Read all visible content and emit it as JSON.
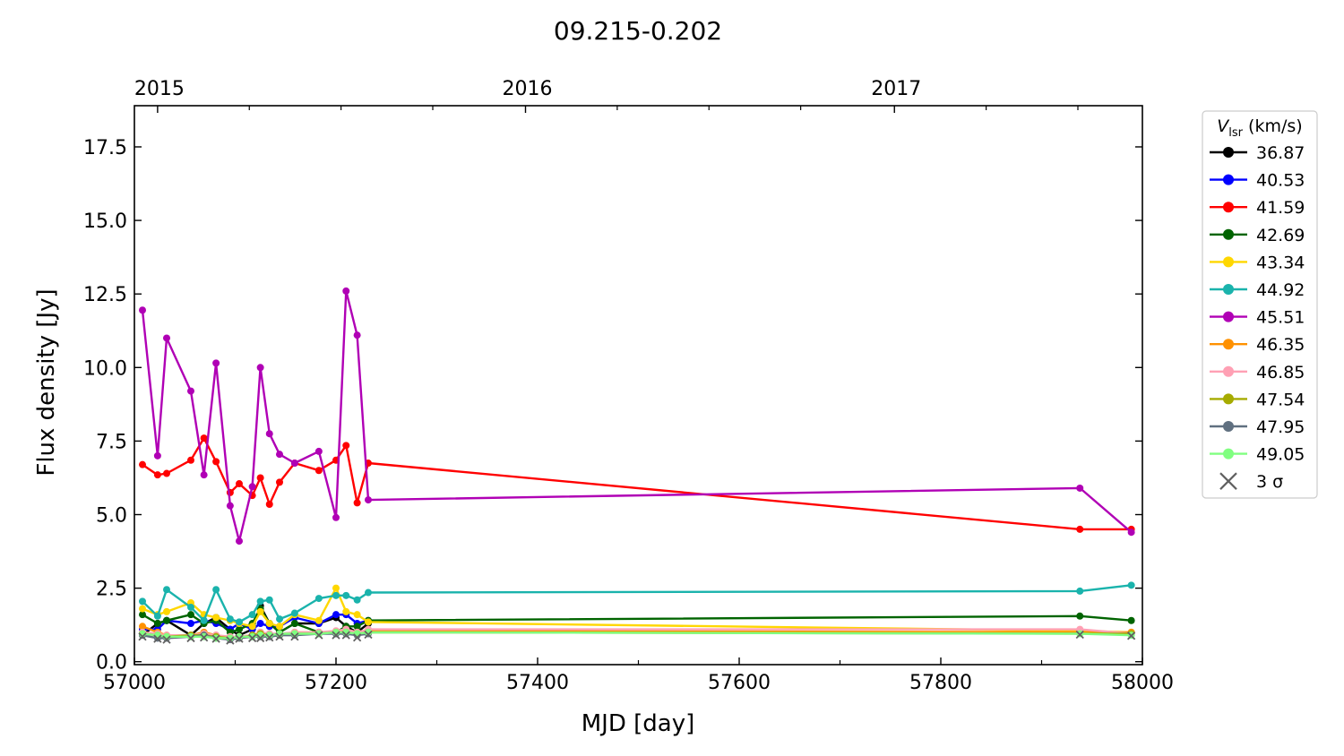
{
  "chart_data": {
    "type": "line",
    "title": "09.215-0.202",
    "xlabel": "MJD [day]",
    "ylabel": "Flux density [Jy]",
    "xlim": [
      57000,
      58000
    ],
    "ylim": [
      -0.1,
      18.9
    ],
    "x_ticks": [
      57000,
      57200,
      57400,
      57600,
      57800,
      58000
    ],
    "y_ticks": [
      "0.0",
      "2.5",
      "5.0",
      "7.5",
      "10.0",
      "12.5",
      "15.0",
      "17.5"
    ],
    "top_axis_ticks": [
      {
        "label": "2015",
        "mjd": 57023
      },
      {
        "label": "2016",
        "mjd": 57388
      },
      {
        "label": "2017",
        "mjd": 57754
      }
    ],
    "legend": {
      "title_main": "V",
      "title_sub": "lsr",
      "title_unit": " (km/s)",
      "placement": "outside-right",
      "sigma_label": "3 σ",
      "sigma_color": "#606060"
    },
    "series": [
      {
        "name": "36.87",
        "color": "#000000",
        "x": [
          57008,
          57023,
          57032,
          57056,
          57069,
          57081,
          57095,
          57104,
          57117,
          57125,
          57134,
          57144,
          57159,
          57183,
          57200,
          57210,
          57221,
          57232
        ],
        "y": [
          0.9,
          1.3,
          1.4,
          0.9,
          1.3,
          1.5,
          1.1,
          0.9,
          1.1,
          1.9,
          1.3,
          1.0,
          1.3,
          1.3,
          1.5,
          1.2,
          1.0,
          1.3
        ]
      },
      {
        "name": "40.53",
        "color": "#0000ff",
        "x": [
          57008,
          57023,
          57032,
          57056,
          57069,
          57081,
          57095,
          57104,
          57117,
          57125,
          57134,
          57144,
          57159,
          57183,
          57200,
          57210,
          57221,
          57232
        ],
        "y": [
          1.1,
          1.1,
          1.4,
          1.3,
          1.4,
          1.3,
          1.1,
          1.3,
          1.1,
          1.3,
          1.2,
          1.2,
          1.5,
          1.3,
          1.6,
          1.6,
          1.3,
          1.4
        ]
      },
      {
        "name": "41.59",
        "color": "#ff0000",
        "x": [
          57008,
          57023,
          57032,
          57056,
          57069,
          57081,
          57095,
          57104,
          57117,
          57125,
          57134,
          57144,
          57159,
          57183,
          57200,
          57210,
          57221,
          57232,
          57938,
          57989
        ],
        "y": [
          6.7,
          6.35,
          6.4,
          6.85,
          7.6,
          6.8,
          5.75,
          6.05,
          5.65,
          6.25,
          5.35,
          6.1,
          6.75,
          6.5,
          6.85,
          7.35,
          5.4,
          6.75,
          4.5,
          4.5
        ]
      },
      {
        "name": "42.69",
        "color": "#006400",
        "x": [
          57008,
          57023,
          57032,
          57056,
          57069,
          57081,
          57095,
          57104,
          57117,
          57125,
          57134,
          57144,
          57159,
          57183,
          57200,
          57210,
          57221,
          57232,
          57938,
          57989
        ],
        "y": [
          1.6,
          1.3,
          1.4,
          1.6,
          1.3,
          1.4,
          1.0,
          1.1,
          1.3,
          1.8,
          1.3,
          1.0,
          1.3,
          1.0,
          1.0,
          1.2,
          1.2,
          1.4,
          1.55,
          1.4
        ]
      },
      {
        "name": "43.34",
        "color": "#ffd700",
        "x": [
          57008,
          57023,
          57032,
          57056,
          57069,
          57081,
          57095,
          57104,
          57117,
          57125,
          57134,
          57144,
          57159,
          57183,
          57200,
          57210,
          57221,
          57232,
          57938,
          57989
        ],
        "y": [
          1.8,
          1.6,
          1.7,
          2.0,
          1.6,
          1.5,
          1.4,
          1.3,
          1.2,
          1.7,
          1.3,
          1.2,
          1.6,
          1.4,
          2.5,
          1.7,
          1.6,
          1.35,
          1.05,
          1.0
        ]
      },
      {
        "name": "44.92",
        "color": "#1ab3ac",
        "x": [
          57008,
          57023,
          57032,
          57056,
          57069,
          57081,
          57095,
          57104,
          57117,
          57125,
          57134,
          57144,
          57159,
          57183,
          57200,
          57210,
          57221,
          57232,
          57938,
          57989
        ],
        "y": [
          2.05,
          1.55,
          2.45,
          1.85,
          1.4,
          2.45,
          1.45,
          1.35,
          1.6,
          2.05,
          2.1,
          1.45,
          1.65,
          2.15,
          2.25,
          2.25,
          2.1,
          2.35,
          2.4,
          2.6
        ]
      },
      {
        "name": "45.51",
        "color": "#b000b5",
        "x": [
          57008,
          57023,
          57032,
          57056,
          57069,
          57081,
          57095,
          57104,
          57117,
          57125,
          57134,
          57144,
          57159,
          57183,
          57200,
          57210,
          57221,
          57232,
          57938,
          57989
        ],
        "y": [
          11.95,
          7.0,
          11.0,
          9.2,
          6.35,
          10.15,
          5.3,
          4.1,
          5.95,
          10.0,
          7.75,
          7.05,
          6.75,
          7.15,
          4.9,
          12.6,
          11.1,
          5.5,
          5.9,
          4.4
        ]
      },
      {
        "name": "46.35",
        "color": "#ff9100",
        "x": [
          57008,
          57023,
          57032,
          57056,
          57069,
          57081,
          57095,
          57104,
          57117,
          57125,
          57134,
          57144,
          57159,
          57183,
          57200,
          57210,
          57221,
          57232,
          57989
        ],
        "y": [
          1.2,
          1.0,
          0.9,
          0.9,
          1.0,
          0.9,
          0.8,
          0.85,
          0.9,
          1.0,
          0.9,
          0.9,
          1.0,
          1.0,
          1.0,
          1.1,
          1.0,
          1.05,
          1.0
        ]
      },
      {
        "name": "46.85",
        "color": "#ffa0b4",
        "x": [
          57008,
          57023,
          57032,
          57056,
          57069,
          57081,
          57095,
          57104,
          57117,
          57125,
          57134,
          57144,
          57159,
          57183,
          57200,
          57210,
          57221,
          57232,
          57938,
          57989
        ],
        "y": [
          1.0,
          0.95,
          0.9,
          0.9,
          0.95,
          0.9,
          0.85,
          0.85,
          0.9,
          1.0,
          0.95,
          0.95,
          1.0,
          1.0,
          1.05,
          1.1,
          1.0,
          1.1,
          1.1,
          0.95
        ]
      },
      {
        "name": "47.54",
        "color": "#a6ab00",
        "x": [
          57008,
          57023,
          57032,
          57056,
          57069,
          57081,
          57095,
          57104,
          57117,
          57125,
          57134,
          57144,
          57159,
          57183,
          57200,
          57210,
          57221,
          57232,
          57989
        ],
        "y": [
          0.95,
          0.9,
          0.85,
          0.9,
          0.9,
          0.85,
          0.8,
          0.8,
          0.9,
          0.95,
          0.9,
          0.9,
          0.95,
          0.95,
          1.0,
          1.0,
          0.95,
          1.0,
          0.95
        ]
      },
      {
        "name": "47.95",
        "color": "#607080",
        "x": [
          57008,
          57023,
          57032,
          57056,
          57069,
          57081,
          57095,
          57104,
          57117,
          57125,
          57134,
          57144,
          57159,
          57183,
          57200,
          57210,
          57221,
          57232
        ],
        "y": [
          0.9,
          0.8,
          0.8,
          0.85,
          0.9,
          0.8,
          0.75,
          0.8,
          0.85,
          0.85,
          0.85,
          0.9,
          0.9,
          0.95,
          0.95,
          0.95,
          0.9,
          0.95
        ]
      },
      {
        "name": "49.05",
        "color": "#80ff80",
        "x": [
          57008,
          57023,
          57032,
          57056,
          57069,
          57081,
          57095,
          57104,
          57117,
          57125,
          57134,
          57144,
          57159,
          57183,
          57200,
          57210,
          57221,
          57232,
          57938,
          57989
        ],
        "y": [
          0.95,
          0.9,
          0.85,
          0.85,
          0.85,
          0.8,
          0.8,
          0.85,
          0.85,
          0.9,
          0.9,
          0.95,
          0.95,
          0.95,
          1.0,
          1.0,
          0.95,
          1.0,
          0.95,
          0.9
        ]
      }
    ],
    "sigma_marks": {
      "x": [
        57008,
        57023,
        57032,
        57056,
        57069,
        57081,
        57095,
        57104,
        57117,
        57125,
        57134,
        57144,
        57159,
        57183,
        57200,
        57210,
        57221,
        57232,
        57938,
        57989
      ],
      "y": [
        0.85,
        0.78,
        0.75,
        0.8,
        0.82,
        0.78,
        0.72,
        0.78,
        0.8,
        0.8,
        0.82,
        0.85,
        0.85,
        0.9,
        0.9,
        0.9,
        0.82,
        0.92,
        0.92,
        0.88
      ]
    }
  }
}
